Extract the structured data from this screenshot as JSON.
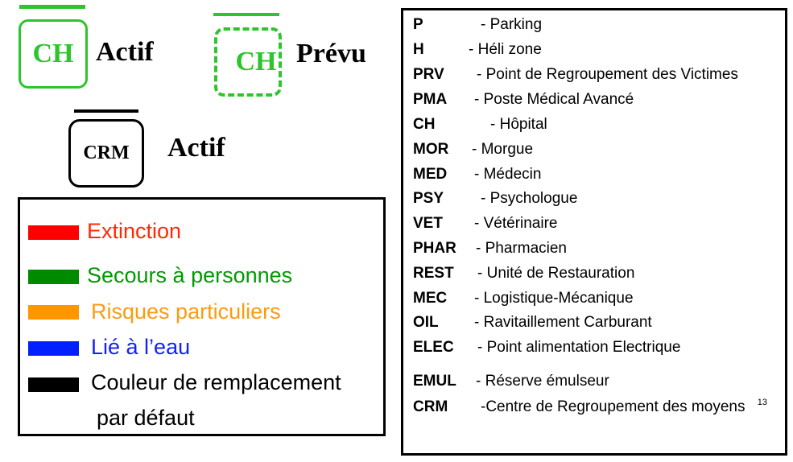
{
  "symbols": {
    "active_ch": {
      "code": "CH",
      "status": "Actif",
      "color": "#2dc52d"
    },
    "planned_ch": {
      "code": "CH",
      "status": "Prévu",
      "color": "#2dc52d"
    },
    "active_crm": {
      "code": "CRM",
      "status": "Actif",
      "color": "#000000"
    }
  },
  "color_legend": [
    {
      "label": "Extinction",
      "swatch": "#ff0000",
      "text_color": "#ff2a00"
    },
    {
      "label": "Secours à personnes",
      "swatch": "#008a00",
      "text_color": "#009a00"
    },
    {
      "label": "Risques particuliers",
      "swatch": "#ff9600",
      "text_color": "#ff9a10"
    },
    {
      "label": "Lié à l’eau",
      "swatch": "#0020ff",
      "text_color": "#1020ff"
    },
    {
      "label": "Couleur de remplacement",
      "label_line2": "par défaut",
      "swatch": "#000000",
      "text_color": "#000000"
    }
  ],
  "abbreviations": [
    {
      "code": "P",
      "desc": "- Parking"
    },
    {
      "code": "H",
      "desc": "- Héli zone"
    },
    {
      "code": "PRV",
      "desc": "- Point de Regroupement des Victimes"
    },
    {
      "code": "PMA",
      "desc": "- Poste Médical Avancé"
    },
    {
      "code": "CH",
      "desc": "- Hôpital"
    },
    {
      "code": "MOR",
      "desc": "- Morgue"
    },
    {
      "code": "MED",
      "desc": "- Médecin"
    },
    {
      "code": "PSY",
      "desc": "- Psychologue"
    },
    {
      "code": "VET",
      "desc": "- Vétérinaire"
    },
    {
      "code": "PHAR",
      "desc": "- Pharmacien"
    },
    {
      "code": "REST",
      "desc": "- Unité de Restauration"
    },
    {
      "code": "MEC",
      "desc": "- Logistique-Mécanique"
    },
    {
      "code": "OIL",
      "desc": "- Ravitaillement Carburant"
    },
    {
      "code": "ELEC",
      "desc": "- Point alimentation Electrique"
    },
    {
      "code": "EMUL",
      "desc": "- Réserve émulseur"
    },
    {
      "code": "CRM",
      "desc": "-Centre de Regroupement des moyens"
    }
  ],
  "page_number": "13"
}
